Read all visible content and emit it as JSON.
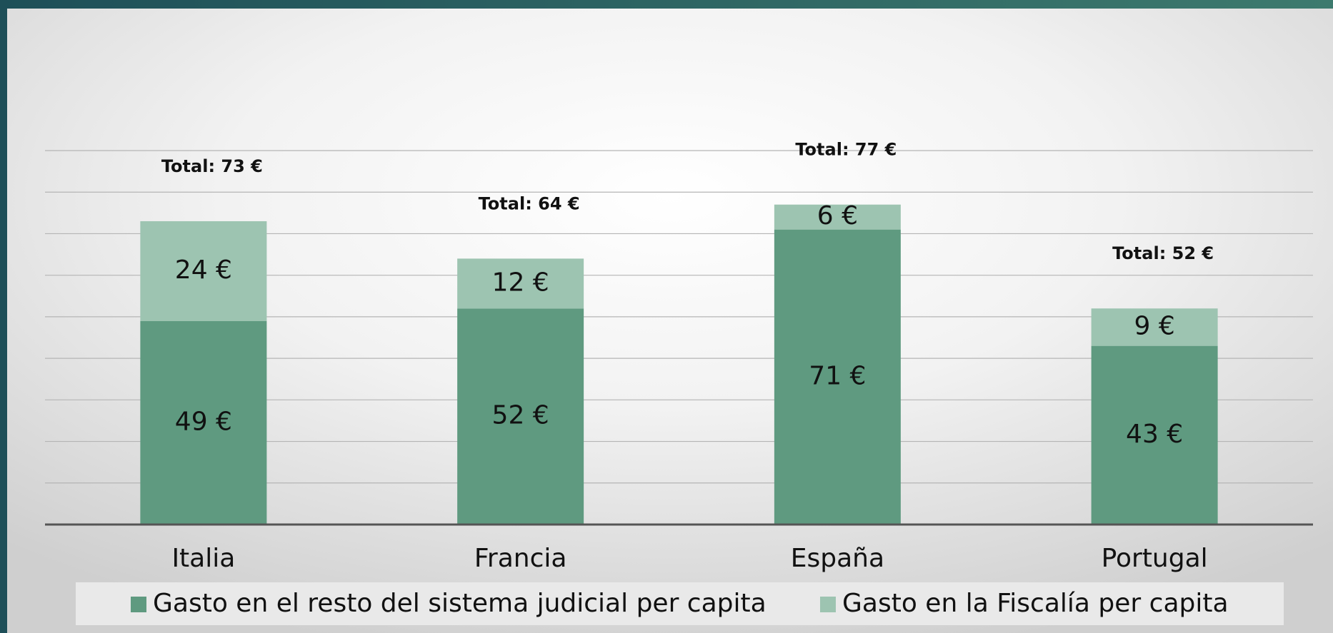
{
  "chart_data": {
    "type": "bar",
    "stacked": true,
    "categories": [
      "Italia",
      "Francia",
      "España",
      "Portugal"
    ],
    "series": [
      {
        "name": "Gasto en el resto del sistema judicial per capita",
        "color": "#5f9a80",
        "values": [
          49,
          52,
          71,
          43
        ],
        "value_labels": [
          "49 €",
          "52 €",
          "71 €",
          "43 €"
        ]
      },
      {
        "name": "Gasto en la Fiscalía per capita",
        "color": "#9dc4b1",
        "values": [
          24,
          12,
          6,
          9
        ],
        "value_labels": [
          "24 €",
          "12 €",
          "6 €",
          "9 €"
        ]
      }
    ],
    "totals": {
      "values": [
        73,
        64,
        77,
        52
      ],
      "value_labels": [
        "Total: 73 €",
        "Total: 64 €",
        "Total: 77 €",
        "Total: 52 €"
      ]
    },
    "ylim": [
      0,
      90
    ],
    "yticks": [
      0,
      10,
      20,
      30,
      40,
      50,
      60,
      70,
      80,
      90
    ],
    "grid": true,
    "legend": "bottom"
  }
}
